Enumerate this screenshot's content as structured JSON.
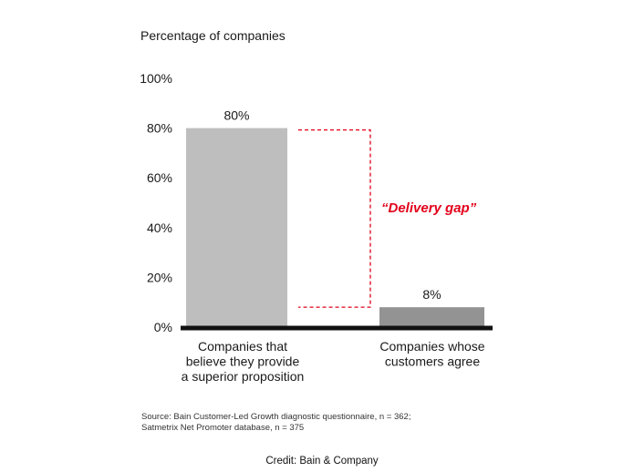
{
  "chart_data": {
    "type": "bar",
    "ylabel": "Percentage of companies",
    "ylim": [
      0,
      100
    ],
    "y_ticks": [
      "0%",
      "20%",
      "40%",
      "60%",
      "80%",
      "100%"
    ],
    "y_tick_values": [
      0,
      20,
      40,
      60,
      80,
      100
    ],
    "categories": [
      [
        "Companies that",
        "believe they provide",
        "a superior proposition"
      ],
      [
        "Companies whose",
        "customers agree"
      ]
    ],
    "values": [
      80,
      8
    ],
    "data_labels": [
      "80%",
      "8%"
    ],
    "bar_colors": [
      "#bebebe",
      "#939393"
    ],
    "annotation": "“Delivery gap”",
    "annotation_color": "#e2001a",
    "grid": false
  },
  "source_lines": [
    "Source: Bain Customer-Led Growth diagnostic questionnaire, n = 362;",
    "Satmetrix Net Promoter database, n = 375"
  ],
  "credit": "Credit: Bain & Company"
}
